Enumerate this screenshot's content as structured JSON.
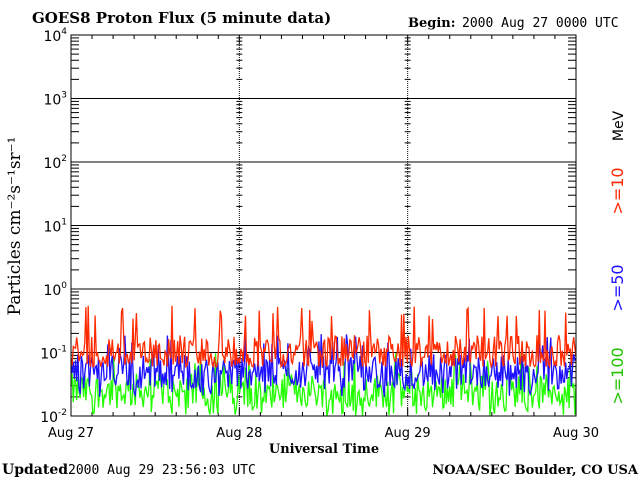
{
  "chart_data": {
    "type": "line",
    "title": "GOES8 Proton Flux (5 minute data)",
    "begin_label": "Begin:",
    "begin_value": "2000 Aug 27 0000 UTC",
    "xlabel": "Universal Time",
    "ylabel": "Particles cm⁻²s⁻¹sr⁻¹",
    "yscale": "log",
    "ylim_log10": [
      -2,
      4
    ],
    "y_ticks": [
      {
        "base": "10",
        "exp": "-2",
        "log": -2
      },
      {
        "base": "10",
        "exp": "-1",
        "log": -1
      },
      {
        "base": "10",
        "exp": "0",
        "log": 0
      },
      {
        "base": "10",
        "exp": "1",
        "log": 1
      },
      {
        "base": "10",
        "exp": "2",
        "log": 2
      },
      {
        "base": "10",
        "exp": "3",
        "log": 3
      },
      {
        "base": "10",
        "exp": "4",
        "log": 4
      }
    ],
    "x_ticks": [
      "Aug 27",
      "Aug 28",
      "Aug 29",
      "Aug 30"
    ],
    "x_days": 3,
    "grid": true,
    "legend_unit": "MeV",
    "series": [
      {
        "name": ">=10",
        "color": "#ff2a00",
        "typical": 0.1,
        "min": 0.06,
        "max": 0.55
      },
      {
        "name": ">=50",
        "color": "#1c10ff",
        "typical": 0.05,
        "min": 0.02,
        "max": 0.2
      },
      {
        "name": ">=100",
        "color": "#22ff00",
        "typical": 0.025,
        "min": 0.01,
        "max": 0.1
      }
    ]
  },
  "footer": {
    "updated_label": "Updated",
    "updated_value": "2000 Aug 29 23:56:03 UTC",
    "credit": "NOAA/SEC Boulder, CO USA"
  }
}
